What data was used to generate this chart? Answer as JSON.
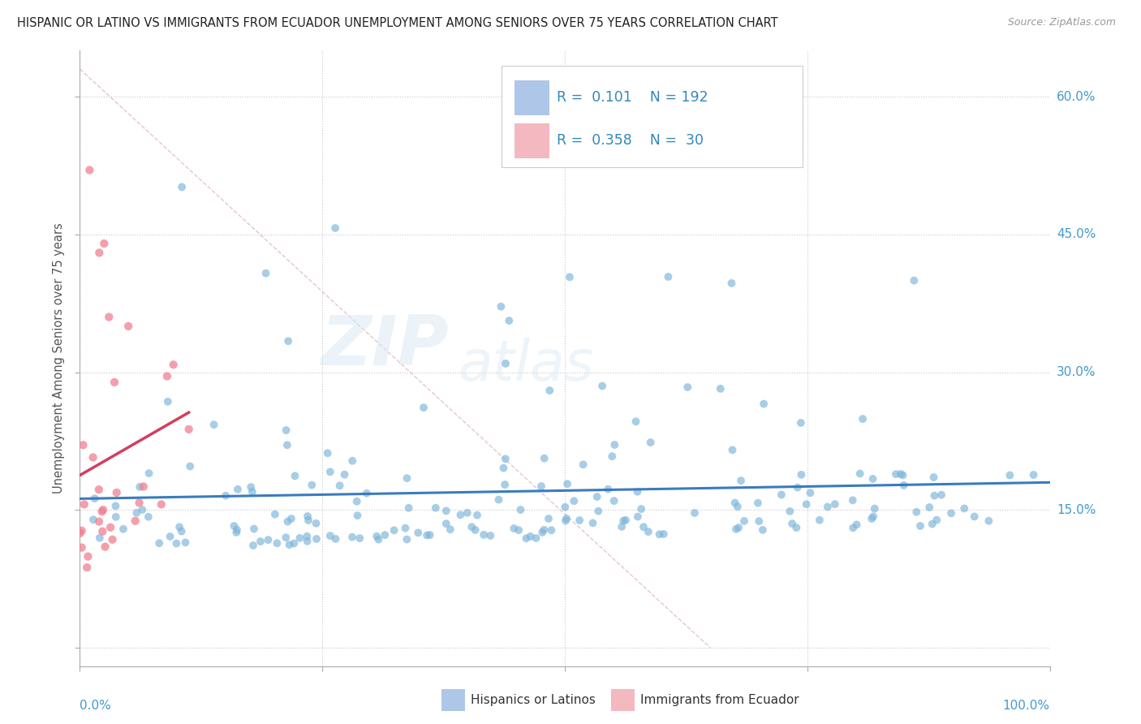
{
  "title": "HISPANIC OR LATINO VS IMMIGRANTS FROM ECUADOR UNEMPLOYMENT AMONG SENIORS OVER 75 YEARS CORRELATION CHART",
  "source": "Source: ZipAtlas.com",
  "ylabel": "Unemployment Among Seniors over 75 years",
  "ytick_vals": [
    0.0,
    0.15,
    0.3,
    0.45,
    0.6
  ],
  "ytick_labels": [
    "0.0%",
    "15.0%",
    "30.0%",
    "45.0%",
    "60.0%"
  ],
  "xlim": [
    0.0,
    1.0
  ],
  "ylim": [
    -0.02,
    0.65
  ],
  "legend_color1": "#aec6e8",
  "legend_color2": "#f4b8c1",
  "scatter_color1": "#7ab3d9",
  "scatter_color2": "#f08090",
  "trendline_color1": "#3a7bbf",
  "trendline_color2": "#d04060",
  "background_color": "#ffffff",
  "watermark1": "ZIP",
  "watermark2": "atlas",
  "r1": 0.101,
  "n1": 192,
  "r2": 0.358,
  "n2": 30
}
